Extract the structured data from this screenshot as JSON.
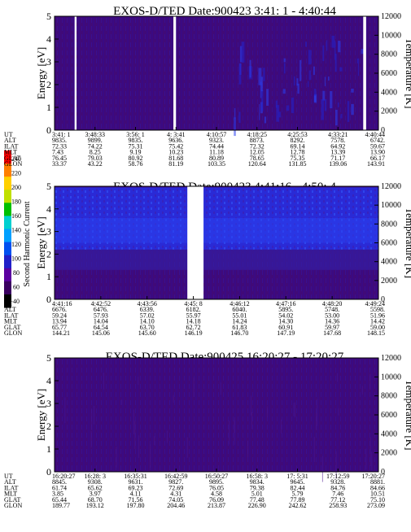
{
  "colors": {
    "background": "#400a78",
    "stripe": "#3a0c92",
    "mid": "#2222cc",
    "high": "#2a40f0",
    "gap": "#ffffff"
  },
  "colorbar": {
    "label": "Second Harmonic Current",
    "ticks": [
      "40",
      "60",
      "80",
      "100",
      "120",
      "140",
      "160",
      "180",
      "200",
      "220",
      "240"
    ],
    "colors": [
      "#000000",
      "#3a0060",
      "#5a00a0",
      "#2020c8",
      "#0050f0",
      "#00a0ff",
      "#00d0d0",
      "#00c000",
      "#c0e000",
      "#ffd000",
      "#ff8000",
      "#ff0000"
    ]
  },
  "chart_data": [
    {
      "type": "heatmap",
      "title": "EXOS-D/TED  Date:900423  3:41: 1 - 4:40:44",
      "ylabel": "Energy [eV]",
      "y2label": "Temperature [K]",
      "ylim": [
        0,
        5
      ],
      "y_ticks": [
        "0",
        "1",
        "2",
        "3",
        "4",
        "5"
      ],
      "y2lim": [
        0,
        12000
      ],
      "y2_ticks": [
        "0",
        "2000",
        "4000",
        "6000",
        "8000",
        "10000",
        "12000"
      ],
      "gaps": [
        [
          0.062,
          0.068
        ],
        [
          0.367,
          0.375
        ],
        [
          0.953,
          0.962
        ]
      ],
      "row_labels": [
        "UT",
        "ALT",
        "ILAT",
        "MLT",
        "GLAT",
        "GLON"
      ],
      "columns": [
        [
          "3:41: 1",
          "9835.",
          "72.33",
          "7.43",
          "76.45",
          "33.37"
        ],
        [
          "3:48:33",
          "9899.",
          "74.22",
          "8.25",
          "79.03",
          "43.22"
        ],
        [
          "3:56: 1",
          "9835.",
          "75.31",
          "9.19",
          "80.92",
          "58.76"
        ],
        [
          "4: 3:41",
          "9636.",
          "75.42",
          "10.23",
          "81.68",
          "81.19"
        ],
        [
          "4:10:57",
          "9323.",
          "74.44",
          "11.18",
          "80.89",
          "103.35"
        ],
        [
          "4:18:25",
          "8873.",
          "72.32",
          "12.05",
          "78.65",
          "120.64"
        ],
        [
          "4:25:53",
          "8292.",
          "69.14",
          "12.78",
          "75.35",
          "131.85"
        ],
        [
          "4:33:21",
          "7578.",
          "64.92",
          "13.39",
          "71.17",
          "139.06"
        ],
        [
          "4:40:44",
          "6742.",
          "59.67",
          "13.90",
          "66.17",
          "143.91"
        ]
      ]
    },
    {
      "type": "heatmap",
      "title": "EXOS-D/TED  Date:900423  4:41:16 - 4:50: 4",
      "ylabel": "Energy [eV]",
      "y2label": "Temperature [K]",
      "ylim": [
        0,
        5
      ],
      "y_ticks": [
        "0",
        "1",
        "2",
        "3",
        "4",
        "5"
      ],
      "y2lim": [
        0,
        12000
      ],
      "y2_ticks": [
        "0",
        "2000",
        "4000",
        "6000",
        "8000",
        "10000",
        "12000"
      ],
      "gaps": [
        [
          0.41,
          0.46
        ]
      ],
      "row_labels": [
        "UT",
        "ALT",
        "ILAT",
        "MLT",
        "GLAT",
        "GLON"
      ],
      "columns": [
        [
          "4:41:16",
          "6676.",
          "59.24",
          "13.94",
          "65.77",
          "144.21"
        ],
        [
          "4:42:52",
          "6476.",
          "57.93",
          "14.04",
          "64.54",
          "145.06"
        ],
        [
          "4:43:56",
          "6339.",
          "57.02",
          "14.10",
          "63.70",
          "145.60"
        ],
        [
          "4:45: 8",
          "6182.",
          "55.97",
          "14.18",
          "62.72",
          "146.19"
        ],
        [
          "4:46:12",
          "6040.",
          "55.01",
          "14.24",
          "61.83",
          "146.70"
        ],
        [
          "4:47:16",
          "5895.",
          "54.02",
          "14.30",
          "60.91",
          "147.19"
        ],
        [
          "4:48:20",
          "5748.",
          "53.00",
          "14.36",
          "59.97",
          "147.68"
        ],
        [
          "4:49:24",
          "5598.",
          "51.96",
          "14.42",
          "59.00",
          "148.15"
        ]
      ]
    },
    {
      "type": "heatmap",
      "title": "EXOS-D/TED  Date:900425  16:20:27 - 17:20:27",
      "ylabel": "Energy [eV]",
      "y2label": "Temperature [K]",
      "ylim": [
        0,
        5
      ],
      "y_ticks": [
        "0",
        "1",
        "2",
        "3",
        "4",
        "5"
      ],
      "y2lim": [
        0,
        12000
      ],
      "y2_ticks": [
        "0",
        "2000",
        "4000",
        "6000",
        "8000",
        "10000",
        "12000"
      ],
      "gaps": [],
      "row_labels": [
        "UT",
        "ALT",
        "ILAT",
        "MLT",
        "GLAT",
        "GLON"
      ],
      "columns": [
        [
          "16:20:27",
          "8845.",
          "61.74",
          "3.85",
          "65.44",
          "189.77"
        ],
        [
          "16:28: 3",
          "9308.",
          "65.62",
          "3.97",
          "68.70",
          "193.12"
        ],
        [
          "16:35:31",
          "9631.",
          "69.23",
          "4.11",
          "71.56",
          "197.80"
        ],
        [
          "16:42:59",
          "9827.",
          "72.69",
          "4.31",
          "74.05",
          "204.46"
        ],
        [
          "16:50:27",
          "9895.",
          "76.05",
          "4.58",
          "76.09",
          "213.87"
        ],
        [
          "16:58: 3",
          "9834.",
          "79.38",
          "5.01",
          "77.48",
          "226.90"
        ],
        [
          "17: 5:31",
          "9645.",
          "82.44",
          "5.79",
          "77.89",
          "242.62"
        ],
        [
          "17:12:59",
          "9328.",
          "84.76",
          "7.46",
          "77.12",
          "258.93"
        ],
        [
          "17:20:27",
          "8881.",
          "84.66",
          "10.51",
          "75.10",
          "273.09"
        ]
      ]
    }
  ]
}
